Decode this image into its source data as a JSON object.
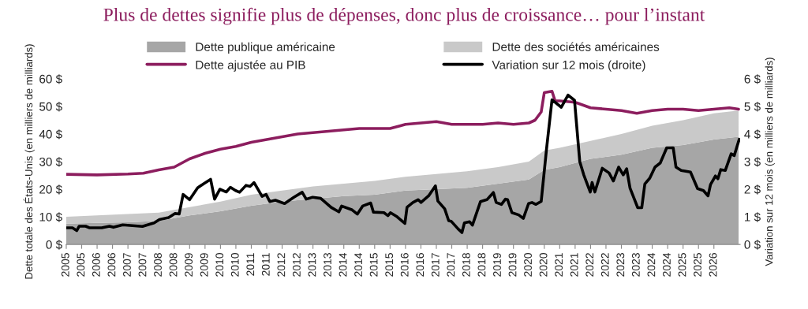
{
  "chart_data": {
    "type": "area",
    "title": "Plus de dettes signifie plus de dépenses, donc plus de croissance… pour l’instant",
    "ylabel": "Dette totale des États-Unis (en milliers de milliards)",
    "y2label": "Variation sur 12 mois (en milliers de milliards)",
    "stacked": true,
    "legend": "top",
    "grid": false,
    "series": [
      {
        "name": "Dette publique américaine",
        "color": "#a6a6a6",
        "x": [
          2005,
          2006,
          2007,
          2008,
          2009,
          2010,
          2011,
          2012,
          2013,
          2014,
          2015,
          2016,
          2017,
          2018,
          2019,
          2020,
          2020.5,
          2021,
          2022,
          2023,
          2024,
          2025,
          2026,
          2026.8
        ],
        "values": [
          7.5,
          7.8,
          8.0,
          8.5,
          10.5,
          12,
          14,
          15.5,
          16.5,
          17.5,
          18,
          19.5,
          20,
          20.5,
          22,
          23.5,
          27,
          28,
          31,
          32.5,
          35,
          36,
          38,
          39
        ]
      },
      {
        "name": "Dette des sociétés américaines",
        "color": "#c9c9c9",
        "x": [
          2005,
          2006,
          2007,
          2008,
          2009,
          2010,
          2011,
          2012,
          2013,
          2014,
          2015,
          2016,
          2017,
          2018,
          2019,
          2020,
          2020.5,
          2021,
          2022,
          2023,
          2024,
          2025,
          2026,
          2026.8
        ],
        "values": [
          2.5,
          2.7,
          3,
          3,
          3,
          3.5,
          4,
          4,
          4.5,
          4.5,
          5,
          5,
          5.5,
          6,
          6,
          6.5,
          7,
          7,
          6.5,
          7.5,
          8,
          9,
          9.5,
          9.5
        ]
      },
      {
        "name": "Dette ajustée au PIB",
        "type": "line",
        "color": "#8c1d5e",
        "x": [
          2005,
          2006,
          2007,
          2007.5,
          2008,
          2008.5,
          2009,
          2009.5,
          2010,
          2010.5,
          2011,
          2011.5,
          2012,
          2012.5,
          2013,
          2013.5,
          2014,
          2014.5,
          2015,
          2015.5,
          2016,
          2016.5,
          2017,
          2017.5,
          2018,
          2018.5,
          2019,
          2019.5,
          2020,
          2020.2,
          2020.4,
          2020.5,
          2020.75,
          2020.85,
          2021,
          2021.5,
          2022,
          2022.5,
          2023,
          2023.5,
          2024,
          2024.5,
          2025,
          2025.5,
          2026,
          2026.5,
          2026.8
        ],
        "values": [
          25.4,
          25.2,
          25.5,
          25.8,
          27,
          28,
          31,
          33,
          34.5,
          35.5,
          37,
          38,
          39,
          40,
          40.5,
          41,
          41.5,
          42,
          42,
          42,
          43.5,
          44,
          44.5,
          43.5,
          43.5,
          43.5,
          44,
          43.5,
          44,
          45,
          48,
          55,
          55.5,
          52,
          52,
          51.5,
          49.5,
          49,
          48.5,
          47.5,
          48.5,
          49,
          49,
          48.5,
          49,
          49.5,
          49
        ]
      },
      {
        "name": "Variation sur 12 mois (droite)",
        "type": "line",
        "axis": "y2",
        "color": "#000000",
        "x": [
          2005.0,
          2005.2,
          2005.34,
          2005.42,
          2005.63,
          2005.76,
          2006.15,
          2006.4,
          2006.53,
          2006.83,
          2007.47,
          2007.85,
          2008.02,
          2008.32,
          2008.53,
          2008.66,
          2008.79,
          2009.0,
          2009.26,
          2009.47,
          2009.68,
          2009.81,
          2009.98,
          2010.19,
          2010.32,
          2010.49,
          2010.62,
          2010.83,
          2010.96,
          2011.09,
          2011.35,
          2011.48,
          2011.6,
          2011.78,
          2012.08,
          2012.38,
          2012.65,
          2012.78,
          2012.99,
          2013.25,
          2013.59,
          2013.84,
          2013.93,
          2014.27,
          2014.44,
          2014.61,
          2014.87,
          2014.96,
          2015.3,
          2015.43,
          2015.51,
          2015.73,
          2015.98,
          2016.05,
          2016.24,
          2016.41,
          2016.5,
          2016.75,
          2016.97,
          2017.05,
          2017.27,
          2017.4,
          2017.48,
          2017.7,
          2017.83,
          2017.91,
          2018.08,
          2018.17,
          2018.43,
          2018.64,
          2018.85,
          2018.94,
          2019.11,
          2019.24,
          2019.31,
          2019.45,
          2019.67,
          2019.82,
          2019.99,
          2020.1,
          2020.23,
          2020.4,
          2020.57,
          2020.75,
          2021.05,
          2021.27,
          2021.48,
          2021.65,
          2021.78,
          2021.99,
          2022.05,
          2022.14,
          2022.38,
          2022.6,
          2022.74,
          2022.91,
          2023.06,
          2023.17,
          2023.28,
          2023.53,
          2023.66,
          2023.76,
          2023.92,
          2024.09,
          2024.26,
          2024.47,
          2024.68,
          2024.77,
          2024.94,
          2025.24,
          2025.47,
          2025.66,
          2025.81,
          2025.89,
          2026.05,
          2026.13,
          2026.22,
          2026.37,
          2026.56,
          2026.66,
          2026.82
        ],
        "values": [
          0.6,
          0.6,
          0.5,
          0.66,
          0.66,
          0.6,
          0.6,
          0.66,
          0.62,
          0.71,
          0.65,
          0.78,
          0.9,
          0.97,
          1.12,
          1.1,
          1.81,
          1.62,
          2.05,
          2.21,
          2.36,
          1.64,
          2.0,
          1.9,
          2.07,
          1.95,
          1.89,
          2.14,
          2.1,
          2.24,
          1.74,
          1.81,
          1.55,
          1.6,
          1.48,
          1.71,
          1.89,
          1.64,
          1.71,
          1.67,
          1.34,
          1.18,
          1.39,
          1.25,
          1.1,
          1.39,
          1.5,
          1.17,
          1.15,
          1.04,
          1.15,
          1.0,
          0.76,
          1.35,
          1.52,
          1.62,
          1.52,
          1.76,
          2.12,
          1.57,
          1.29,
          0.86,
          0.84,
          0.57,
          0.43,
          0.78,
          0.82,
          0.7,
          1.55,
          1.62,
          1.88,
          1.52,
          1.45,
          1.64,
          1.62,
          1.15,
          1.07,
          0.94,
          1.48,
          1.52,
          1.45,
          1.56,
          3.43,
          5.24,
          4.97,
          5.41,
          5.22,
          3.0,
          2.52,
          1.9,
          2.24,
          1.9,
          2.76,
          2.59,
          2.3,
          2.8,
          2.52,
          2.74,
          2.04,
          1.33,
          1.33,
          2.19,
          2.4,
          2.8,
          2.95,
          3.5,
          3.5,
          2.8,
          2.68,
          2.62,
          2.02,
          1.95,
          1.76,
          2.17,
          2.48,
          2.38,
          2.71,
          2.68,
          3.28,
          3.22,
          3.81
        ]
      }
    ],
    "xlim": [
      2005,
      2026.85
    ],
    "xticks": [
      {
        "value": 2005.0,
        "label": "2005"
      },
      {
        "value": 2005.5,
        "label": "2005"
      },
      {
        "value": 2006.0,
        "label": "2006"
      },
      {
        "value": 2006.5,
        "label": "2006"
      },
      {
        "value": 2007.0,
        "label": "2007"
      },
      {
        "value": 2007.5,
        "label": "2007"
      },
      {
        "value": 2008.0,
        "label": "2008"
      },
      {
        "value": 2008.5,
        "label": "2008"
      },
      {
        "value": 2009.0,
        "label": "2009"
      },
      {
        "value": 2009.5,
        "label": "2009"
      },
      {
        "value": 2010.0,
        "label": "2010"
      },
      {
        "value": 2010.5,
        "label": "2010"
      },
      {
        "value": 2011.0,
        "label": "2011"
      },
      {
        "value": 2011.5,
        "label": "2011"
      },
      {
        "value": 2012.0,
        "label": "2012"
      },
      {
        "value": 2012.5,
        "label": "2012"
      },
      {
        "value": 2013.0,
        "label": "2013"
      },
      {
        "value": 2013.5,
        "label": "2013"
      },
      {
        "value": 2014.0,
        "label": "2014"
      },
      {
        "value": 2014.5,
        "label": "2014"
      },
      {
        "value": 2015.0,
        "label": "2015"
      },
      {
        "value": 2015.5,
        "label": "2015"
      },
      {
        "value": 2016.0,
        "label": "2016"
      },
      {
        "value": 2016.5,
        "label": "2016"
      },
      {
        "value": 2017.0,
        "label": "2017"
      },
      {
        "value": 2017.5,
        "label": "2017"
      },
      {
        "value": 2018.0,
        "label": "2018"
      },
      {
        "value": 2018.5,
        "label": "2018"
      },
      {
        "value": 2019.0,
        "label": "2019"
      },
      {
        "value": 2019.5,
        "label": "2019"
      },
      {
        "value": 2020.0,
        "label": "2020"
      },
      {
        "value": 2020.5,
        "label": "2020"
      },
      {
        "value": 2021.0,
        "label": "2021"
      },
      {
        "value": 2021.5,
        "label": "2021"
      },
      {
        "value": 2022.0,
        "label": "2022"
      },
      {
        "value": 2022.5,
        "label": "2022"
      },
      {
        "value": 2023.0,
        "label": "2023"
      },
      {
        "value": 2023.5,
        "label": "2023"
      },
      {
        "value": 2024.0,
        "label": "2024"
      },
      {
        "value": 2024.5,
        "label": "2024"
      },
      {
        "value": 2025.0,
        "label": "2025"
      },
      {
        "value": 2025.5,
        "label": "2025"
      },
      {
        "value": 2026.0,
        "label": "2026"
      }
    ],
    "ylim": [
      0,
      60
    ],
    "yticks": [
      {
        "value": 0,
        "label": "0 $"
      },
      {
        "value": 10,
        "label": "10 $"
      },
      {
        "value": 20,
        "label": "20 $"
      },
      {
        "value": 30,
        "label": "30 $"
      },
      {
        "value": 40,
        "label": "40 $"
      },
      {
        "value": 50,
        "label": "50 $"
      },
      {
        "value": 60,
        "label": "60 $"
      }
    ],
    "y2lim": [
      0,
      6
    ],
    "y2ticks": [
      {
        "value": 0,
        "label": "0 $"
      },
      {
        "value": 1,
        "label": "1 $"
      },
      {
        "value": 2,
        "label": "2 $"
      },
      {
        "value": 3,
        "label": "3 $"
      },
      {
        "value": 4,
        "label": "4 $"
      },
      {
        "value": 5,
        "label": "5 $"
      },
      {
        "value": 6,
        "label": "6 $"
      }
    ]
  }
}
